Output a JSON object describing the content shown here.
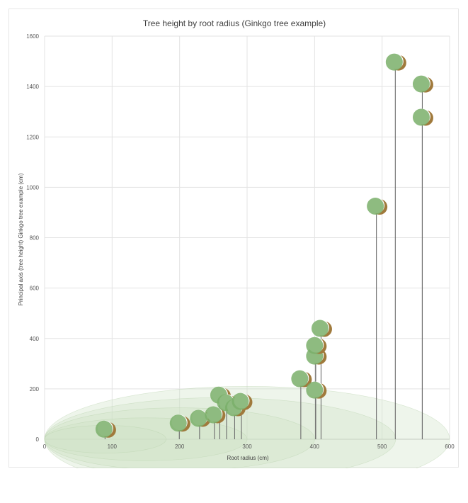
{
  "chart_data": {
    "type": "scatter",
    "title": "Tree height by root radius (Ginkgo tree example)",
    "xlabel": "Root radius (cm)",
    "ylabel": "Principal axis (tree height) Ginkgo tree example (cm)",
    "xlim": [
      0,
      600
    ],
    "ylim": [
      0,
      1600
    ],
    "xticks": [
      0,
      100,
      200,
      300,
      400,
      500,
      600
    ],
    "yticks": [
      0,
      200,
      400,
      600,
      800,
      1000,
      1200,
      1400,
      1600
    ],
    "grid": true,
    "points": [
      {
        "x": 88,
        "y": 40
      },
      {
        "x": 198,
        "y": 64
      },
      {
        "x": 228,
        "y": 83
      },
      {
        "x": 250,
        "y": 97
      },
      {
        "x": 258,
        "y": 175
      },
      {
        "x": 268,
        "y": 145
      },
      {
        "x": 280,
        "y": 125
      },
      {
        "x": 290,
        "y": 150
      },
      {
        "x": 378,
        "y": 240
      },
      {
        "x": 400,
        "y": 195
      },
      {
        "x": 400,
        "y": 330
      },
      {
        "x": 400,
        "y": 372
      },
      {
        "x": 408,
        "y": 440
      },
      {
        "x": 490,
        "y": 925
      },
      {
        "x": 518,
        "y": 1497
      },
      {
        "x": 558,
        "y": 1410
      },
      {
        "x": 558,
        "y": 1278
      }
    ],
    "root_ellipses": [
      {
        "cx": 300,
        "cy": 0,
        "rx": 300,
        "ry": 210
      },
      {
        "cx": 260,
        "cy": 0,
        "rx": 260,
        "ry": 165
      },
      {
        "cx": 200,
        "cy": 0,
        "rx": 200,
        "ry": 125
      },
      {
        "cx": 150,
        "cy": 0,
        "rx": 150,
        "ry": 85
      },
      {
        "cx": 90,
        "cy": 0,
        "rx": 90,
        "ry": 55
      }
    ],
    "colors": {
      "canopy": "#7aaf6a",
      "trunk_crescent": "#a07a3c",
      "stem": "#6b6b6b",
      "root": "#cfe2c6",
      "grid": "#e3e3e3"
    }
  }
}
